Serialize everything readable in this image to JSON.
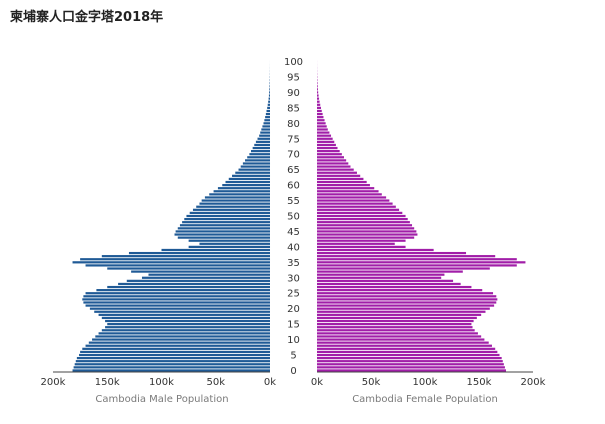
{
  "chart_data": {
    "type": "bar",
    "orientation": "horizontal-butterfly",
    "title": "柬埔寨人口金字塔2018年",
    "age_axis": {
      "ticks": [
        "0",
        "5",
        "10",
        "15",
        "20",
        "25",
        "30",
        "35",
        "40",
        "45",
        "50",
        "55",
        "60",
        "65",
        "70",
        "75",
        "80",
        "85",
        "90",
        "95",
        "100"
      ]
    },
    "x_axis": {
      "male_ticks": [
        {
          "value": 200000,
          "label": "200k"
        },
        {
          "value": 150000,
          "label": "150k"
        },
        {
          "value": 100000,
          "label": "100k"
        },
        {
          "value": 50000,
          "label": "50k"
        },
        {
          "value": 0,
          "label": "0k"
        }
      ],
      "female_ticks": [
        {
          "value": 0,
          "label": "0k"
        },
        {
          "value": 50000,
          "label": "50k"
        },
        {
          "value": 100000,
          "label": "100k"
        },
        {
          "value": 150000,
          "label": "150k"
        },
        {
          "value": 200000,
          "label": "200k"
        }
      ],
      "xlim": [
        0,
        200000
      ]
    },
    "ages": [
      0,
      1,
      2,
      3,
      4,
      5,
      6,
      7,
      8,
      9,
      10,
      11,
      12,
      13,
      14,
      15,
      16,
      17,
      18,
      19,
      20,
      21,
      22,
      23,
      24,
      25,
      26,
      27,
      28,
      29,
      30,
      31,
      32,
      33,
      34,
      35,
      36,
      37,
      38,
      39,
      40,
      41,
      42,
      43,
      44,
      45,
      46,
      47,
      48,
      49,
      50,
      51,
      52,
      53,
      54,
      55,
      56,
      57,
      58,
      59,
      60,
      61,
      62,
      63,
      64,
      65,
      66,
      67,
      68,
      69,
      70,
      71,
      72,
      73,
      74,
      75,
      76,
      77,
      78,
      79,
      80,
      81,
      82,
      83,
      84,
      85,
      86,
      87,
      88,
      89,
      90,
      91,
      92,
      93,
      94,
      95,
      96,
      97,
      98,
      99,
      100
    ],
    "series": [
      {
        "name": "Cambodia Male Population",
        "color": "#1f5a96",
        "values": [
          182000,
          181000,
          180000,
          179000,
          178000,
          176000,
          175000,
          173000,
          170000,
          167000,
          164000,
          161000,
          158000,
          155000,
          152000,
          150000,
          152000,
          155000,
          158000,
          162000,
          166000,
          170000,
          172000,
          173000,
          172000,
          170000,
          160000,
          150000,
          140000,
          132000,
          118000,
          112000,
          128000,
          150000,
          170000,
          182000,
          175000,
          155000,
          130000,
          100000,
          75000,
          65000,
          75000,
          85000,
          88000,
          87000,
          85000,
          83000,
          81000,
          79000,
          77000,
          74000,
          71000,
          68000,
          65000,
          63000,
          60000,
          56000,
          52000,
          48000,
          44000,
          41000,
          38000,
          35000,
          32000,
          29000,
          27000,
          25000,
          23000,
          21000,
          19000,
          17500,
          16000,
          14500,
          13000,
          11500,
          10000,
          9000,
          8000,
          7000,
          6000,
          5200,
          4500,
          3800,
          3200,
          2600,
          2100,
          1700,
          1300,
          1000,
          800,
          600,
          450,
          350,
          250,
          180,
          130,
          90,
          60,
          40,
          20
        ]
      },
      {
        "name": "Cambodia Female Population",
        "color": "#a11ea8",
        "values": [
          175000,
          174000,
          173000,
          172000,
          171000,
          169000,
          167000,
          165000,
          162000,
          159000,
          155000,
          152000,
          149000,
          146000,
          144000,
          143000,
          145000,
          148000,
          152000,
          156000,
          160000,
          164000,
          166000,
          167000,
          166000,
          163000,
          153000,
          143000,
          133000,
          126000,
          115000,
          118000,
          135000,
          160000,
          185000,
          193000,
          185000,
          165000,
          138000,
          108000,
          82000,
          72000,
          82000,
          90000,
          93000,
          92000,
          90000,
          88000,
          86000,
          84000,
          82000,
          79000,
          76000,
          73000,
          70000,
          67000,
          64000,
          60000,
          57000,
          53000,
          49000,
          46000,
          43000,
          40000,
          37000,
          34000,
          31000,
          29000,
          27000,
          25000,
          23000,
          21000,
          19000,
          17500,
          16000,
          14500,
          13000,
          11500,
          10000,
          9000,
          8000,
          7000,
          6000,
          5200,
          4400,
          3700,
          3000,
          2400,
          1900,
          1500,
          1100,
          850,
          650,
          480,
          350,
          250,
          180,
          120,
          80,
          50,
          30
        ]
      }
    ]
  }
}
